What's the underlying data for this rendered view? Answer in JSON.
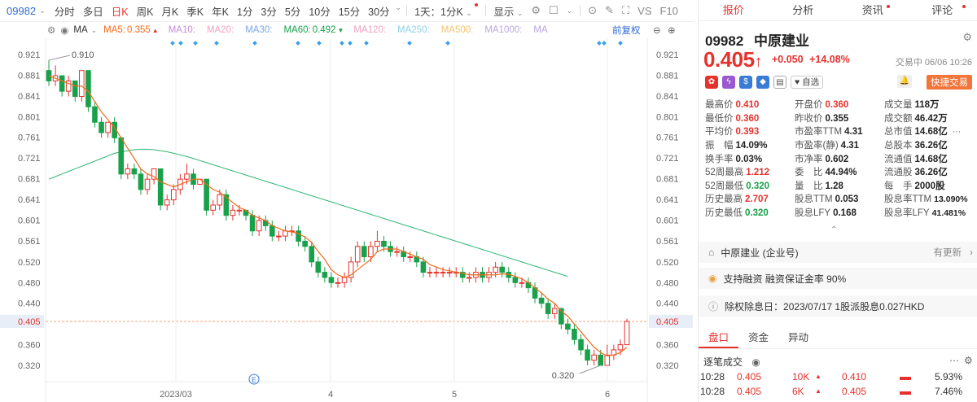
{
  "toolbar": {
    "code": "09982",
    "periods": [
      "分时",
      "多日",
      "日K",
      "周K",
      "月K",
      "季K",
      "年K",
      "1分",
      "3分",
      "5分",
      "10分",
      "15分",
      "30分"
    ],
    "active_period": "日K",
    "range": "1天：1分K",
    "display": "显示",
    "tools": [
      "VS",
      "F10"
    ]
  },
  "ma": {
    "label": "MA",
    "items": [
      {
        "label": "MA5:",
        "value": "0.355",
        "arrow": "▲",
        "color": "#f26b1d"
      },
      {
        "label": "MA10:",
        "value": "",
        "color": "#c98bd9"
      },
      {
        "label": "MA20:",
        "value": "",
        "color": "#f0a0c0"
      },
      {
        "label": "MA30:",
        "value": "",
        "color": "#7aa7e6"
      },
      {
        "label": "MA60:",
        "value": "0.492",
        "arrow": "▼",
        "color": "#18a14a"
      },
      {
        "label": "MA120:",
        "value": "",
        "color": "#f0a0c0"
      },
      {
        "label": "MA250:",
        "value": "",
        "color": "#8fd0e8"
      },
      {
        "label": "MA500:",
        "value": "",
        "color": "#f5c36e"
      },
      {
        "label": "MA1000:",
        "value": "",
        "color": "#b9a6e0"
      },
      {
        "label": "MA",
        "value": "",
        "color": "#b9a6e0"
      }
    ],
    "adjust": "前复权"
  },
  "chart_data": {
    "type": "candlestick",
    "y_ticks": [
      "0.921",
      "0.881",
      "0.841",
      "0.801",
      "0.761",
      "0.721",
      "0.681",
      "0.641",
      "0.601",
      "0.561",
      "0.520",
      "0.480",
      "0.440",
      "0.405",
      "0.360",
      "0.320"
    ],
    "ylim": [
      0.3,
      0.94
    ],
    "x_labels": [
      "2023/03",
      "4",
      "5",
      "6"
    ],
    "high_label": "0.910",
    "low_label": "0.320",
    "current_price": "0.405",
    "marker": "E",
    "colors": {
      "up": "#e5322d",
      "down": "#18a14a",
      "ma5": "#f26b1d",
      "ma60": "#2bb673"
    },
    "candles": [
      [
        0.89,
        0.87,
        0.91,
        0.86
      ],
      [
        0.87,
        0.88,
        0.9,
        0.86
      ],
      [
        0.88,
        0.85,
        0.88,
        0.84
      ],
      [
        0.85,
        0.87,
        0.88,
        0.84
      ],
      [
        0.87,
        0.84,
        0.87,
        0.83
      ],
      [
        0.84,
        0.89,
        0.89,
        0.83
      ],
      [
        0.89,
        0.82,
        0.89,
        0.81
      ],
      [
        0.82,
        0.79,
        0.83,
        0.78
      ],
      [
        0.79,
        0.77,
        0.8,
        0.76
      ],
      [
        0.77,
        0.79,
        0.79,
        0.76
      ],
      [
        0.79,
        0.76,
        0.8,
        0.75
      ],
      [
        0.76,
        0.69,
        0.76,
        0.68
      ],
      [
        0.69,
        0.7,
        0.71,
        0.68
      ],
      [
        0.7,
        0.69,
        0.71,
        0.68
      ],
      [
        0.69,
        0.66,
        0.7,
        0.65
      ],
      [
        0.66,
        0.68,
        0.69,
        0.65
      ],
      [
        0.68,
        0.7,
        0.7,
        0.67
      ],
      [
        0.7,
        0.63,
        0.7,
        0.62
      ],
      [
        0.63,
        0.64,
        0.65,
        0.62
      ],
      [
        0.64,
        0.66,
        0.67,
        0.63
      ],
      [
        0.66,
        0.68,
        0.69,
        0.65
      ],
      [
        0.68,
        0.69,
        0.71,
        0.67
      ],
      [
        0.69,
        0.67,
        0.7,
        0.66
      ],
      [
        0.67,
        0.68,
        0.68,
        0.67
      ],
      [
        0.68,
        0.62,
        0.68,
        0.61
      ],
      [
        0.62,
        0.63,
        0.64,
        0.61
      ],
      [
        0.63,
        0.65,
        0.66,
        0.62
      ],
      [
        0.65,
        0.61,
        0.66,
        0.6
      ],
      [
        0.61,
        0.62,
        0.63,
        0.6
      ],
      [
        0.62,
        0.62,
        0.63,
        0.61
      ],
      [
        0.62,
        0.61,
        0.62,
        0.6
      ],
      [
        0.61,
        0.58,
        0.62,
        0.57
      ],
      [
        0.58,
        0.6,
        0.61,
        0.57
      ],
      [
        0.6,
        0.59,
        0.61,
        0.58
      ],
      [
        0.59,
        0.57,
        0.6,
        0.56
      ],
      [
        0.57,
        0.57,
        0.58,
        0.56
      ],
      [
        0.57,
        0.58,
        0.59,
        0.56
      ],
      [
        0.58,
        0.58,
        0.59,
        0.57
      ],
      [
        0.58,
        0.56,
        0.59,
        0.55
      ],
      [
        0.56,
        0.55,
        0.57,
        0.54
      ],
      [
        0.55,
        0.52,
        0.56,
        0.51
      ],
      [
        0.52,
        0.5,
        0.53,
        0.49
      ],
      [
        0.5,
        0.49,
        0.51,
        0.48
      ],
      [
        0.49,
        0.48,
        0.5,
        0.47
      ],
      [
        0.48,
        0.48,
        0.49,
        0.47
      ],
      [
        0.48,
        0.49,
        0.5,
        0.47
      ],
      [
        0.49,
        0.52,
        0.53,
        0.48
      ],
      [
        0.52,
        0.55,
        0.56,
        0.51
      ],
      [
        0.55,
        0.53,
        0.56,
        0.52
      ],
      [
        0.53,
        0.55,
        0.56,
        0.52
      ],
      [
        0.55,
        0.56,
        0.58,
        0.54
      ],
      [
        0.56,
        0.55,
        0.57,
        0.54
      ],
      [
        0.55,
        0.54,
        0.56,
        0.53
      ],
      [
        0.54,
        0.54,
        0.55,
        0.53
      ],
      [
        0.54,
        0.53,
        0.55,
        0.52
      ],
      [
        0.53,
        0.53,
        0.54,
        0.52
      ],
      [
        0.53,
        0.52,
        0.54,
        0.51
      ],
      [
        0.52,
        0.5,
        0.53,
        0.49
      ],
      [
        0.5,
        0.5,
        0.51,
        0.49
      ],
      [
        0.5,
        0.5,
        0.51,
        0.49
      ],
      [
        0.5,
        0.5,
        0.51,
        0.49
      ],
      [
        0.5,
        0.5,
        0.51,
        0.49
      ],
      [
        0.5,
        0.5,
        0.51,
        0.49
      ],
      [
        0.5,
        0.49,
        0.51,
        0.48
      ],
      [
        0.49,
        0.49,
        0.5,
        0.48
      ],
      [
        0.49,
        0.5,
        0.51,
        0.48
      ],
      [
        0.5,
        0.49,
        0.51,
        0.48
      ],
      [
        0.49,
        0.5,
        0.51,
        0.48
      ],
      [
        0.5,
        0.51,
        0.52,
        0.49
      ],
      [
        0.51,
        0.5,
        0.52,
        0.49
      ],
      [
        0.5,
        0.49,
        0.51,
        0.48
      ],
      [
        0.49,
        0.48,
        0.5,
        0.47
      ],
      [
        0.48,
        0.48,
        0.49,
        0.47
      ],
      [
        0.48,
        0.47,
        0.49,
        0.46
      ],
      [
        0.47,
        0.45,
        0.48,
        0.44
      ],
      [
        0.45,
        0.44,
        0.46,
        0.43
      ],
      [
        0.44,
        0.42,
        0.45,
        0.41
      ],
      [
        0.42,
        0.43,
        0.44,
        0.41
      ],
      [
        0.43,
        0.4,
        0.43,
        0.39
      ],
      [
        0.4,
        0.39,
        0.41,
        0.38
      ],
      [
        0.39,
        0.37,
        0.4,
        0.36
      ],
      [
        0.37,
        0.35,
        0.38,
        0.34
      ],
      [
        0.35,
        0.33,
        0.36,
        0.32
      ],
      [
        0.33,
        0.34,
        0.35,
        0.32
      ],
      [
        0.34,
        0.32,
        0.35,
        0.32
      ],
      [
        0.32,
        0.34,
        0.36,
        0.32
      ],
      [
        0.34,
        0.35,
        0.36,
        0.33
      ],
      [
        0.35,
        0.36,
        0.37,
        0.34
      ],
      [
        0.36,
        0.405,
        0.41,
        0.36
      ]
    ],
    "ma5": [
      0.88,
      0.875,
      0.87,
      0.865,
      0.86,
      0.86,
      0.85,
      0.83,
      0.81,
      0.795,
      0.78,
      0.76,
      0.74,
      0.72,
      0.7,
      0.69,
      0.685,
      0.675,
      0.67,
      0.665,
      0.67,
      0.675,
      0.68,
      0.68,
      0.67,
      0.66,
      0.655,
      0.645,
      0.635,
      0.625,
      0.62,
      0.61,
      0.605,
      0.6,
      0.59,
      0.585,
      0.58,
      0.578,
      0.575,
      0.568,
      0.558,
      0.54,
      0.525,
      0.505,
      0.495,
      0.49,
      0.495,
      0.505,
      0.515,
      0.525,
      0.54,
      0.545,
      0.545,
      0.545,
      0.54,
      0.535,
      0.53,
      0.525,
      0.515,
      0.51,
      0.505,
      0.503,
      0.5,
      0.498,
      0.495,
      0.495,
      0.495,
      0.495,
      0.495,
      0.497,
      0.496,
      0.492,
      0.487,
      0.48,
      0.47,
      0.46,
      0.448,
      0.44,
      0.425,
      0.415,
      0.4,
      0.385,
      0.37,
      0.355,
      0.345,
      0.338,
      0.34,
      0.345,
      0.355
    ],
    "ma60": [
      0.68,
      0.685,
      0.69,
      0.695,
      0.7,
      0.705,
      0.71,
      0.715,
      0.72,
      0.725,
      0.73,
      0.733,
      0.735,
      0.737,
      0.738,
      0.738,
      0.737,
      0.735,
      0.733,
      0.73,
      0.727,
      0.724,
      0.72,
      0.716,
      0.712,
      0.708,
      0.704,
      0.7,
      0.696,
      0.692,
      0.688,
      0.684,
      0.68,
      0.676,
      0.672,
      0.668,
      0.664,
      0.66,
      0.656,
      0.652,
      0.648,
      0.644,
      0.64,
      0.636,
      0.632,
      0.628,
      0.624,
      0.62,
      0.616,
      0.612,
      0.608,
      0.604,
      0.6,
      0.596,
      0.592,
      0.588,
      0.584,
      0.58,
      0.576,
      0.572,
      0.568,
      0.564,
      0.56,
      0.556,
      0.552,
      0.548,
      0.544,
      0.54,
      0.536,
      0.532,
      0.528,
      0.524,
      0.52,
      0.516,
      0.512,
      0.508,
      0.504,
      0.5,
      0.496,
      0.492
    ]
  },
  "stock": {
    "code": "09982",
    "name": "中原建业",
    "price": "0.405",
    "arrow": "↑",
    "change": "+0.050",
    "change_pct": "+14.08%",
    "trade_time": "交易中 06/06 10:26",
    "fav_label": "自选",
    "quick_trade": "快捷交易"
  },
  "tabs": [
    "报价",
    "分析",
    "资讯",
    "评论"
  ],
  "quote_grid": [
    [
      {
        "label": "最高价",
        "value": "0.410",
        "color": "red"
      },
      {
        "label": "开盘价",
        "value": "0.360",
        "color": "red"
      },
      {
        "label": "成交量",
        "value": "118万"
      }
    ],
    [
      {
        "label": "最低价",
        "value": "0.360",
        "color": "red"
      },
      {
        "label": "昨收价",
        "value": "0.355"
      },
      {
        "label": "成交额",
        "value": "46.42万"
      }
    ],
    [
      {
        "label": "平均价",
        "value": "0.393",
        "color": "red"
      },
      {
        "label": "市盈率TTM",
        "value": "4.31"
      },
      {
        "label": "总市值",
        "value": "14.68亿"
      }
    ],
    [
      {
        "label": "振　幅",
        "value": "14.09%"
      },
      {
        "label": "市盈率(静)",
        "value": "4.31"
      },
      {
        "label": "总股本",
        "value": "36.26亿"
      }
    ],
    [
      {
        "label": "换手率",
        "value": "0.03%"
      },
      {
        "label": "市净率",
        "value": "0.602"
      },
      {
        "label": "流通值",
        "value": "14.68亿"
      }
    ],
    [
      {
        "label": "52周最高",
        "value": "1.212",
        "color": "red"
      },
      {
        "label": "委　比",
        "value": "44.94%"
      },
      {
        "label": "流通股",
        "value": "36.26亿"
      }
    ],
    [
      {
        "label": "52周最低",
        "value": "0.320",
        "color": "green"
      },
      {
        "label": "量　比",
        "value": "1.28"
      },
      {
        "label": "每　手",
        "value": "2000股"
      }
    ],
    [
      {
        "label": "历史最高",
        "value": "2.707",
        "color": "red"
      },
      {
        "label": "股息TTM",
        "value": "0.053"
      },
      {
        "label": "股息率TTM",
        "value": "13.090%"
      }
    ],
    [
      {
        "label": "历史最低",
        "value": "0.320",
        "color": "green"
      },
      {
        "label": "股息LFY",
        "value": "0.168"
      },
      {
        "label": "股息率LFY",
        "value": "41.481%"
      }
    ]
  ],
  "cards": {
    "company": "中原建业 (企业号)",
    "company_update": "有更新",
    "margin": "支持融资 融资保证金率 90%",
    "dividend": "除权除息日：2023/07/17 1股派股息0.027HKD"
  },
  "sub_tabs": [
    "盘口",
    "资金",
    "异动"
  ],
  "ticks": {
    "title": "逐笔成交",
    "rows": [
      {
        "time": "10:28",
        "price": "0.405",
        "vol": "10K",
        "arrow": "▲"
      },
      {
        "time": "10:28",
        "price": "0.405",
        "vol": "6K",
        "arrow": "▲"
      }
    ],
    "book": [
      {
        "price": "0.410",
        "pct": "5.93%"
      },
      {
        "price": "0.405",
        "pct": "7.46%"
      }
    ]
  }
}
